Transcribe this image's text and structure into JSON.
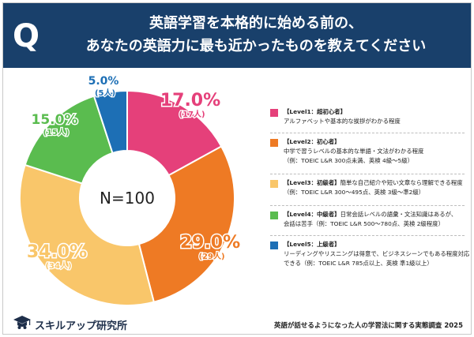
{
  "header": {
    "q_mark": "Q",
    "title_line1": "英語学習を本格的に始める前の、",
    "title_line2": "あなたの英語力に最も近かったものを教えてください"
  },
  "chart_data": {
    "type": "pie",
    "center_label": "N=100",
    "slices": [
      {
        "level": "Level1",
        "percent": 17.0,
        "percent_label": "17.0%",
        "count_label": "(17人)",
        "color": "#e5407a"
      },
      {
        "level": "Level2",
        "percent": 29.0,
        "percent_label": "29.0%",
        "count_label": "(29人)",
        "color": "#ee7a24"
      },
      {
        "level": "Level3",
        "percent": 34.0,
        "percent_label": "34.0%",
        "count_label": "(34人)",
        "color": "#f9c66a"
      },
      {
        "level": "Level4",
        "percent": 15.0,
        "percent_label": "15.0%",
        "count_label": "(15人)",
        "color": "#5abc4f"
      },
      {
        "level": "Level5",
        "percent": 5.0,
        "percent_label": "5.0%",
        "count_label": "(5人)",
        "color": "#1d6fb5"
      }
    ],
    "legend": [
      {
        "heading": "【Level1：超初心者】",
        "lines": [
          "アルファベットや基本的な挨拶がわかる程度"
        ]
      },
      {
        "heading": "【Level2：初心者】",
        "lines": [
          "中学で習うレベルの基本的な単語・文法がわかる程度",
          "（例：TOEIC L&R 300点未満、英検 4級〜5級）"
        ]
      },
      {
        "heading": "【Level3：初級者】",
        "heading_suffix": "簡単な自己紹介や短い文章なら理解できる程度",
        "lines": [
          "（例：TOEIC L&R 300〜495点、英検 3級〜準2級）"
        ]
      },
      {
        "heading": "【Level4：中級者】",
        "heading_suffix": "日常会話レベルの語彙・文法知識はあるが、",
        "lines": [
          "会話は苦手（例：TOEIC L&R 500〜780点、英検 2級程度）"
        ]
      },
      {
        "heading": "【Level5：上級者】",
        "lines": [
          "リーディングやリスニングは得意で、ビジネスシーンでもある程度対応",
          "できる（例：TOEIC L&R 785点以上、英検 準1級以上）"
        ]
      }
    ]
  },
  "footer": {
    "brand": "スキルアップ研究所",
    "note": "英語が話せるようになった人の学習法に関する実態調査 2025"
  }
}
